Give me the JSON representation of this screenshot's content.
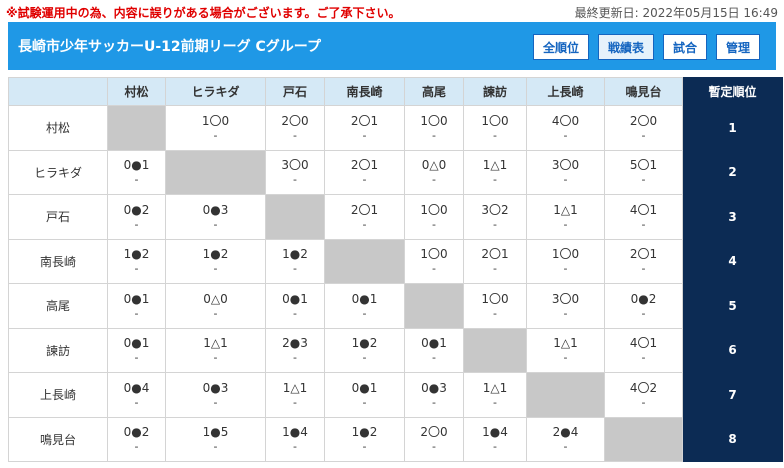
{
  "notice": "※試験運用中の為、内容に誤りがある場合がございます。ご了承下さい。",
  "updated": "最終更新日: 2022年05月15日 16:49",
  "header": {
    "title": "長崎市少年サッカーU-12前期リーグ Cグループ",
    "buttons": [
      "全順位",
      "戦績表",
      "試合",
      "管理"
    ],
    "active": "戦績表"
  },
  "table": {
    "rank_header": "暫定順位",
    "teams": [
      "村松",
      "ヒラキダ",
      "戸石",
      "南長崎",
      "高尾",
      "諫訪",
      "上長崎",
      "鳴見台"
    ],
    "rows": [
      {
        "team": "村松",
        "results": [
          "",
          "1〇0",
          "2〇0",
          "2〇1",
          "1〇0",
          "1〇0",
          "4〇0",
          "2〇0"
        ],
        "rank": "1"
      },
      {
        "team": "ヒラキダ",
        "results": [
          "0●1",
          "",
          "3〇0",
          "2〇1",
          "0△0",
          "1△1",
          "3〇0",
          "5〇1"
        ],
        "rank": "2"
      },
      {
        "team": "戸石",
        "results": [
          "0●2",
          "0●3",
          "",
          "2〇1",
          "1〇0",
          "3〇2",
          "1△1",
          "4〇1"
        ],
        "rank": "3"
      },
      {
        "team": "南長崎",
        "results": [
          "1●2",
          "1●2",
          "1●2",
          "",
          "1〇0",
          "2〇1",
          "1〇0",
          "2〇1"
        ],
        "rank": "4"
      },
      {
        "team": "高尾",
        "results": [
          "0●1",
          "0△0",
          "0●1",
          "0●1",
          "",
          "1〇0",
          "3〇0",
          "0●2"
        ],
        "rank": "5"
      },
      {
        "team": "諫訪",
        "results": [
          "0●1",
          "1△1",
          "2●3",
          "1●2",
          "0●1",
          "",
          "1△1",
          "4〇1"
        ],
        "rank": "6"
      },
      {
        "team": "上長崎",
        "results": [
          "0●4",
          "0●3",
          "1△1",
          "0●1",
          "0●3",
          "1△1",
          "",
          "4〇2"
        ],
        "rank": "7"
      },
      {
        "team": "鳴見台",
        "results": [
          "0●2",
          "1●5",
          "1●4",
          "1●2",
          "2〇0",
          "1●4",
          "2●4",
          ""
        ],
        "rank": "8"
      }
    ],
    "sub_mark": "-"
  }
}
